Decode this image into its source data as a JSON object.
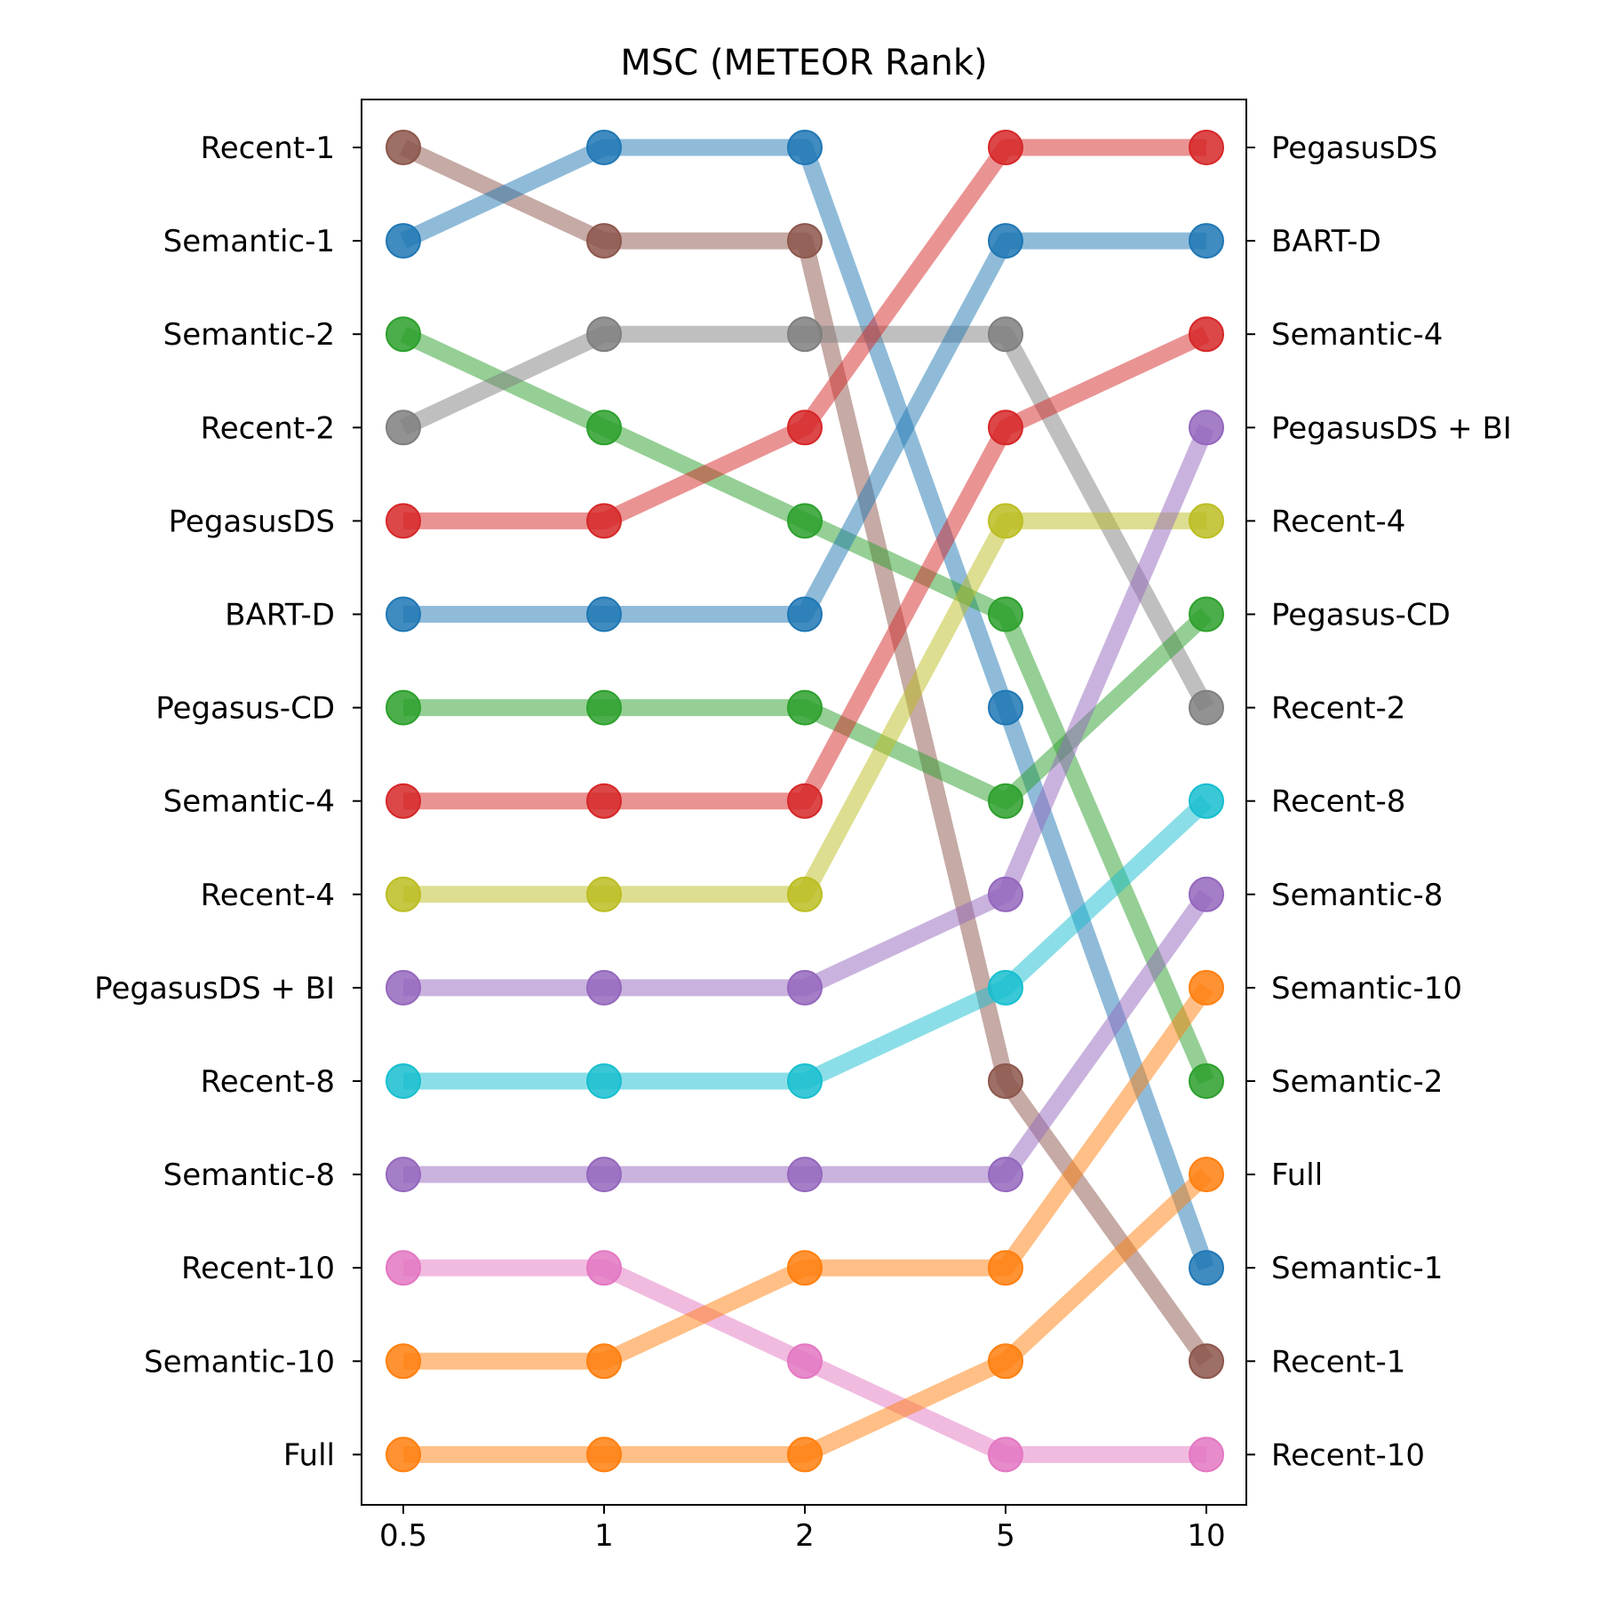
{
  "chart_data": {
    "type": "line",
    "title": "MSC (METEOR Rank)",
    "xlabel": "",
    "ylabel": "",
    "x": [
      "0.5",
      "1",
      "2",
      "5",
      "10"
    ],
    "y_rank_range": [
      1,
      15
    ],
    "y_inverted": true,
    "grid": false,
    "legend": "none",
    "left_labels": [
      "Recent-1",
      "Semantic-1",
      "Semantic-2",
      "Recent-2",
      "PegasusDS",
      "BART-D",
      "Pegasus-CD",
      "Semantic-4",
      "Recent-4",
      "PegasusDS + BI",
      "Recent-8",
      "Semantic-8",
      "Recent-10",
      "Semantic-10",
      "Full"
    ],
    "right_labels": [
      "PegasusDS",
      "BART-D",
      "Semantic-4",
      "PegasusDS + BI",
      "Recent-4",
      "Pegasus-CD",
      "Recent-2",
      "Recent-8",
      "Semantic-8",
      "Semantic-10",
      "Semantic-2",
      "Full",
      "Semantic-1",
      "Recent-1",
      "Recent-10"
    ],
    "series": [
      {
        "name": "Recent-1",
        "color": "#8c564b",
        "values": [
          1,
          2,
          2,
          11,
          14
        ]
      },
      {
        "name": "Semantic-1",
        "color": "#1f77b4",
        "values": [
          2,
          1,
          1,
          7,
          13
        ]
      },
      {
        "name": "Semantic-2",
        "color": "#2ca02c",
        "values": [
          3,
          4,
          5,
          6,
          11
        ]
      },
      {
        "name": "Recent-2",
        "color": "#7f7f7f",
        "values": [
          4,
          3,
          3,
          3,
          7
        ]
      },
      {
        "name": "PegasusDS",
        "color": "#d62728",
        "values": [
          5,
          5,
          4,
          1,
          1
        ]
      },
      {
        "name": "BART-D",
        "color": "#1f77b4",
        "values": [
          6,
          6,
          6,
          2,
          2
        ]
      },
      {
        "name": "Pegasus-CD",
        "color": "#2ca02c",
        "values": [
          7,
          7,
          7,
          8,
          6
        ]
      },
      {
        "name": "Semantic-4",
        "color": "#d62728",
        "values": [
          8,
          8,
          8,
          4,
          3
        ]
      },
      {
        "name": "Recent-4",
        "color": "#bcbd22",
        "values": [
          9,
          9,
          9,
          5,
          5
        ]
      },
      {
        "name": "PegasusDS + BI",
        "color": "#9467bd",
        "values": [
          10,
          10,
          10,
          9,
          4
        ]
      },
      {
        "name": "Recent-8",
        "color": "#17becf",
        "values": [
          11,
          11,
          11,
          10,
          8
        ]
      },
      {
        "name": "Semantic-8",
        "color": "#9467bd",
        "values": [
          12,
          12,
          12,
          12,
          9
        ]
      },
      {
        "name": "Recent-10",
        "color": "#e377c2",
        "values": [
          13,
          13,
          14,
          15,
          15
        ]
      },
      {
        "name": "Semantic-10",
        "color": "#ff7f0e",
        "values": [
          14,
          14,
          13,
          13,
          10
        ]
      },
      {
        "name": "Full",
        "color": "#ff7f0e",
        "values": [
          15,
          15,
          15,
          14,
          12
        ]
      }
    ]
  }
}
